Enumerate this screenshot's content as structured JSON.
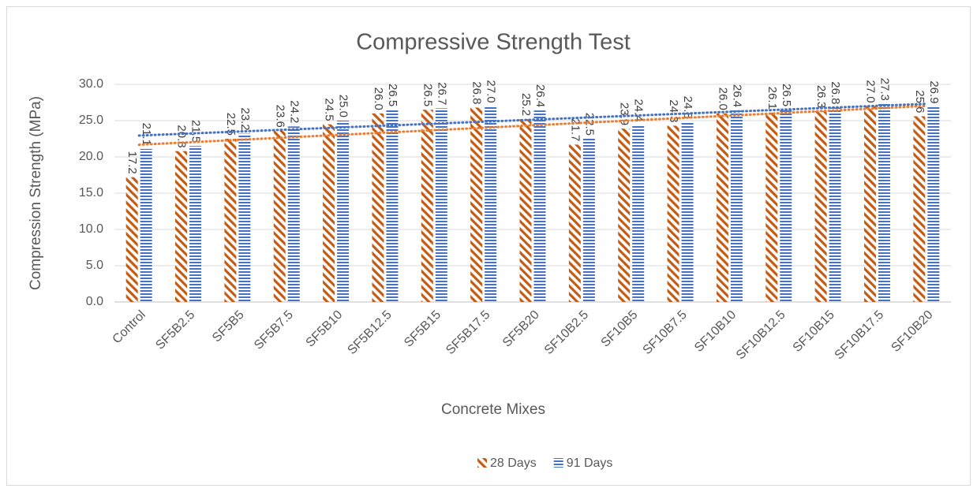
{
  "chart_data": {
    "type": "bar",
    "title": "Compressive Strength Test",
    "x_label": "Concrete Mixes",
    "y_label": "Compression Strength (MPa)",
    "categories": [
      "Control",
      "SF5B2.5",
      "SF5B5",
      "SF5B7.5",
      "SF5B10",
      "SF5B12.5",
      "SF5B15",
      "SF5B17.5",
      "SF5B20",
      "SF10B2.5",
      "SF10B5",
      "SF10B7.5",
      "SF10B10",
      "SF10B12.5",
      "SF10B15",
      "SF10B17.5",
      "SF10B20"
    ],
    "series": [
      {
        "name": "28 Days",
        "color": "#C55A11",
        "pattern": "diagonal",
        "trendline_color": "#ED7D31",
        "values": [
          17.2,
          20.8,
          22.5,
          23.6,
          24.5,
          26.0,
          26.5,
          26.8,
          25.2,
          21.7,
          23.9,
          24.3,
          26.0,
          26.1,
          26.3,
          27.0,
          25.6
        ],
        "value_labels": [
          "17.2",
          "20.8",
          "22.5",
          "23.6",
          "24.5",
          "26.0",
          "26.5",
          "26.8",
          "25.2",
          "21.7",
          "23.9",
          "24.3",
          "26.0",
          "26.1",
          "26.3",
          "27.0",
          "25.6"
        ]
      },
      {
        "name": "91 Days",
        "color": "#4472C4",
        "pattern": "horizontal",
        "trendline_color": "#4472C4",
        "values": [
          21.1,
          21.5,
          23.2,
          24.2,
          25.0,
          26.5,
          26.7,
          27.0,
          26.4,
          22.5,
          24.4,
          24.8,
          26.4,
          26.5,
          26.8,
          27.3,
          26.9
        ],
        "value_labels": [
          "21.1",
          "21.5",
          "23.2",
          "24.2",
          "25.0",
          "26.5",
          "26.7",
          "27.0",
          "26.4",
          "22.5",
          "24.4",
          "24.8",
          "26.4",
          "26.5",
          "26.8",
          "27.3",
          "26.9"
        ]
      }
    ],
    "ylim": [
      0,
      30
    ],
    "yticks": [
      {
        "value": 0,
        "label": "0.0"
      },
      {
        "value": 5,
        "label": "5.0"
      },
      {
        "value": 10,
        "label": "10.0"
      },
      {
        "value": 15,
        "label": "15.0"
      },
      {
        "value": 20,
        "label": "20.0"
      },
      {
        "value": 25,
        "label": "25.0"
      },
      {
        "value": 30,
        "label": "30.0"
      }
    ],
    "grid": true,
    "trendline": "linear",
    "legend": "bottom"
  }
}
